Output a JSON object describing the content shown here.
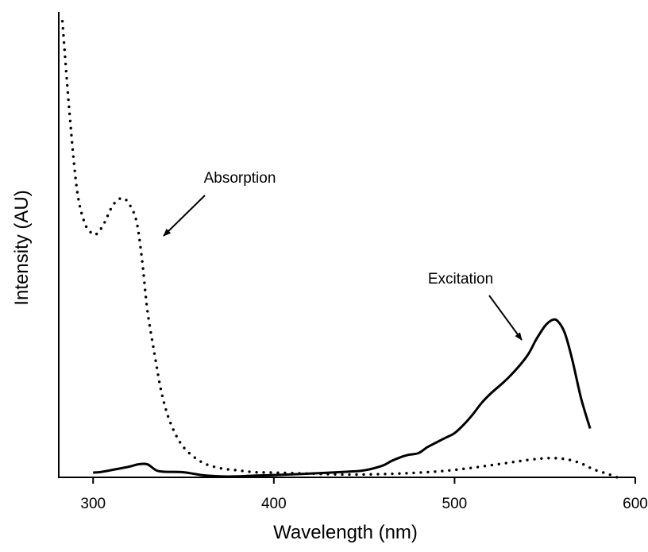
{
  "chart_data": {
    "type": "line",
    "title": "",
    "xlabel": "Wavelength (nm)",
    "ylabel": "Intensity (AU)",
    "xlim": [
      281,
      600
    ],
    "ylim": [
      0,
      100
    ],
    "xticks": [
      300,
      400,
      500,
      600
    ],
    "grid": false,
    "legend": "none",
    "series": [
      {
        "name": "Absorption",
        "style": "dotted",
        "color": "#000000",
        "x": [
          283,
          287,
          291,
          295,
          299,
          302,
          306,
          311,
          316,
          320,
          324,
          327,
          330,
          334,
          338,
          343,
          350,
          360,
          370,
          380,
          390,
          400,
          420,
          440,
          460,
          480,
          500,
          520,
          540,
          550,
          557,
          563,
          570,
          577,
          585,
          590
        ],
        "y": [
          98,
          78,
          62,
          55,
          52.5,
          52.3,
          54.5,
          58.5,
          60,
          58.7,
          55,
          47,
          36,
          26.5,
          18,
          11.5,
          6.5,
          3.3,
          2,
          1.5,
          1.1,
          1,
          0.8,
          0.6,
          0.7,
          1,
          1.6,
          2.6,
          3.7,
          4.1,
          4.1,
          3.8,
          3,
          1.7,
          0.7,
          0
        ]
      },
      {
        "name": "Excitation",
        "style": "solid",
        "color": "#000000",
        "x": [
          300,
          305,
          312,
          320,
          325,
          330,
          335,
          340,
          350,
          360,
          370,
          380,
          390,
          400,
          420,
          440,
          450,
          460,
          465,
          470,
          474,
          480,
          485,
          490,
          495,
          500,
          505,
          510,
          515,
          520,
          530,
          540,
          545,
          550,
          554,
          557,
          561,
          565,
          570,
          575
        ],
        "y": [
          1,
          1.2,
          1.7,
          2.3,
          2.8,
          2.8,
          1.5,
          1.2,
          1.1,
          0.5,
          0.2,
          0.2,
          0.4,
          0.5,
          0.8,
          1.2,
          1.5,
          2.5,
          3.5,
          4.3,
          4.8,
          5.2,
          6.5,
          7.5,
          8.5,
          9.5,
          11.3,
          13.5,
          16,
          18,
          21.5,
          26,
          29.5,
          32.5,
          33.8,
          33.6,
          31,
          25.5,
          17,
          10.5
        ]
      }
    ],
    "annotations": [
      {
        "text": "Absorption"
      },
      {
        "text": "Excitation"
      }
    ]
  }
}
